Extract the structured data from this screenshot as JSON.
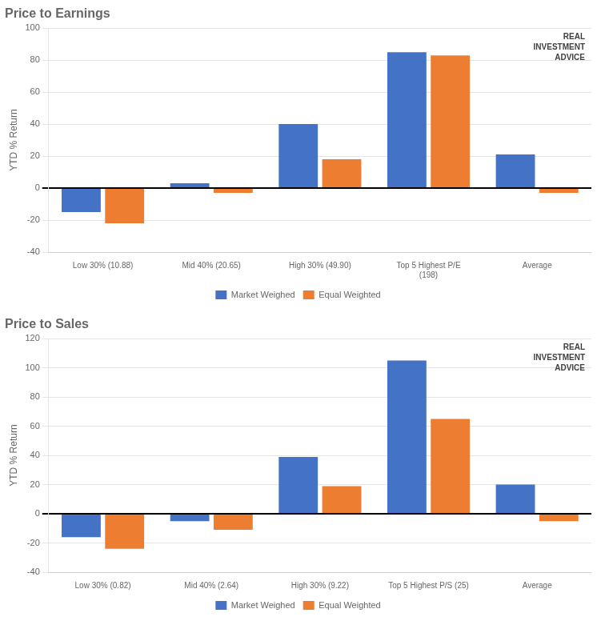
{
  "chart_data": [
    {
      "type": "bar",
      "title": "Price to Earnings",
      "categories": [
        "Low 30% (10.88)",
        "Mid 40% (20.65)",
        "High 30% (49.90)",
        "Top 5 Highest P/E\n(198)",
        "Average"
      ],
      "series": [
        {
          "name": "Market Weighed",
          "color": "#4472C4",
          "values": [
            -15,
            3,
            40,
            85,
            21
          ]
        },
        {
          "name": "Equal Weighted",
          "color": "#ED7D31",
          "values": [
            -22,
            -3,
            18,
            83,
            -3
          ]
        }
      ],
      "y_label": "YTD % Return",
      "ylim": [
        -40,
        100
      ],
      "yticks": [
        -40,
        -20,
        0,
        20,
        40,
        60,
        80,
        100
      ],
      "grid": true,
      "legend": "bottom",
      "annotations": [
        "REAL",
        "INVESTMENT",
        "ADVICE"
      ]
    },
    {
      "type": "bar",
      "title": "Price to Sales",
      "categories": [
        "Low 30% (0.82)",
        "Mid 40% (2.64)",
        "High 30% (9.22)",
        "Top 5 Highest P/S (25)",
        "Average"
      ],
      "series": [
        {
          "name": "Market Weighed",
          "color": "#4472C4",
          "values": [
            -16,
            -5,
            39,
            105,
            20
          ]
        },
        {
          "name": "Equal Weighted",
          "color": "#ED7D31",
          "values": [
            -24,
            -11,
            19,
            65,
            -5
          ]
        }
      ],
      "y_label": "YTD % Return",
      "ylim": [
        -40,
        120
      ],
      "yticks": [
        -40,
        -20,
        0,
        20,
        40,
        60,
        80,
        100,
        120
      ],
      "grid": true,
      "legend": "bottom",
      "annotations": [
        "REAL",
        "INVESTMENT",
        "ADVICE"
      ]
    }
  ]
}
